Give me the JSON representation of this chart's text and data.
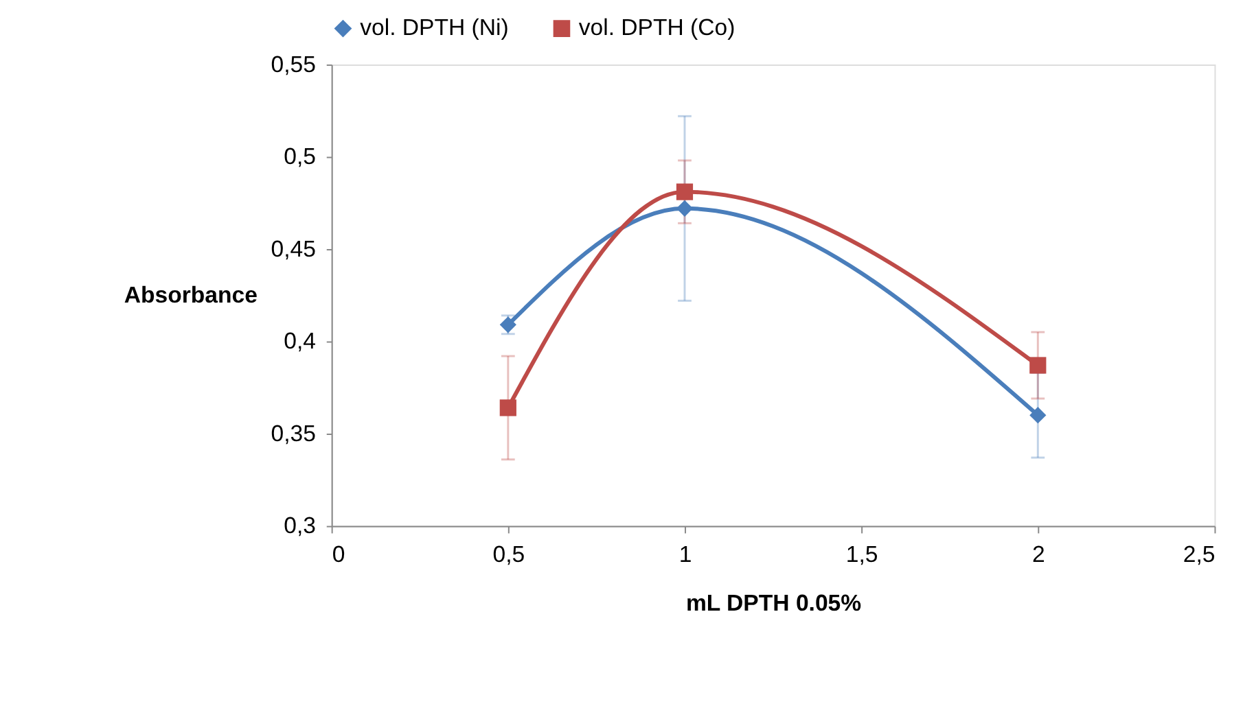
{
  "chart_data": {
    "type": "line",
    "xlabel": "mL DPTH 0.05%",
    "ylabel": "Absorbance",
    "x": [
      0.5,
      1,
      2
    ],
    "series": [
      {
        "name": "vol. DPTH (Ni)",
        "color": "#4a7ebb",
        "marker": "diamond",
        "values": [
          0.409,
          0.472,
          0.36
        ],
        "errors": [
          0.005,
          0.05,
          0.023
        ]
      },
      {
        "name": "vol. DPTH (Co)",
        "color": "#be4b48",
        "marker": "square",
        "values": [
          0.364,
          0.481,
          0.387
        ],
        "errors": [
          0.028,
          0.017,
          0.018
        ]
      }
    ],
    "xlim": [
      0,
      2.5
    ],
    "xticks": [
      0,
      {
        "value": 0.5,
        "label": "0,5"
      },
      1,
      {
        "value": 1.5,
        "label": "1,5"
      },
      2,
      {
        "value": 2.5,
        "label": "2,5"
      }
    ],
    "ylim": [
      0.3,
      0.55
    ],
    "yticks": [
      {
        "value": 0.3,
        "label": "0,3"
      },
      {
        "value": 0.35,
        "label": "0,35"
      },
      {
        "value": 0.4,
        "label": "0,4"
      },
      {
        "value": 0.45,
        "label": "0,45"
      },
      {
        "value": 0.5,
        "label": "0,5"
      },
      {
        "value": 0.55,
        "label": "0,55"
      }
    ],
    "grid": false,
    "legend": "top",
    "line_style": "solid"
  }
}
